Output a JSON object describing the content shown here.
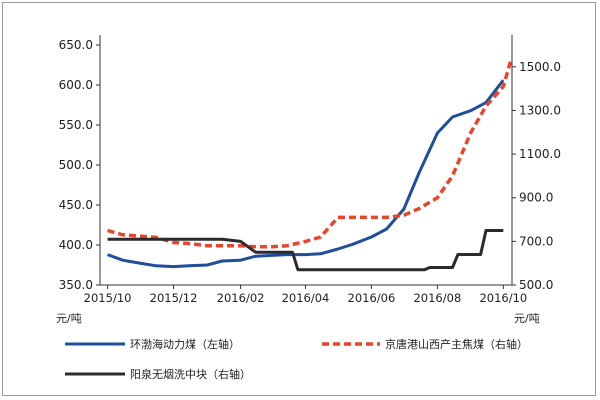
{
  "chart_data": {
    "type": "line",
    "x_ticks": [
      "2015/10",
      "2015/12",
      "2016/02",
      "2016/04",
      "2016/06",
      "2016/08",
      "2016/10"
    ],
    "y_left": {
      "unit": "元/吨",
      "range": [
        350,
        650
      ],
      "ticks": [
        "350.0",
        "400.0",
        "450.0",
        "500.0",
        "550.0",
        "600.0",
        "650.0"
      ]
    },
    "y_right": {
      "unit": "元/吨",
      "range": [
        500,
        1600
      ],
      "ticks": [
        "500.0",
        "700.0",
        "900.0",
        "1100.0",
        "1300.0",
        "1500.0"
      ]
    },
    "grid": false,
    "legend_position": "bottom",
    "colors": {
      "left_series": "#1f4e9c",
      "right_dashed": "#e8452a",
      "right_black": "#2b2b2b"
    },
    "series": [
      {
        "name": "环渤海动力煤（左轴）",
        "axis": "left",
        "style": "solid",
        "points": [
          [
            "2015-10-01",
            388
          ],
          [
            "2015-10-15",
            381
          ],
          [
            "2015-11-01",
            377
          ],
          [
            "2015-11-15",
            374
          ],
          [
            "2015-12-01",
            373
          ],
          [
            "2015-12-15",
            374
          ],
          [
            "2016-01-01",
            375
          ],
          [
            "2016-01-15",
            380
          ],
          [
            "2016-02-01",
            381
          ],
          [
            "2016-02-15",
            386
          ],
          [
            "2016-03-01",
            387
          ],
          [
            "2016-03-15",
            388
          ],
          [
            "2016-04-01",
            388
          ],
          [
            "2016-04-15",
            389
          ],
          [
            "2016-05-01",
            395
          ],
          [
            "2016-05-15",
            401
          ],
          [
            "2016-06-01",
            410
          ],
          [
            "2016-06-15",
            420
          ],
          [
            "2016-07-01",
            445
          ],
          [
            "2016-07-15",
            490
          ],
          [
            "2016-08-01",
            540
          ],
          [
            "2016-08-15",
            560
          ],
          [
            "2016-09-01",
            568
          ],
          [
            "2016-09-15",
            578
          ],
          [
            "2016-10-01",
            606
          ]
        ]
      },
      {
        "name": "京唐港山西产主焦煤（右轴）",
        "axis": "right",
        "style": "dashed",
        "points": [
          [
            "2015-10-01",
            750
          ],
          [
            "2015-10-15",
            730
          ],
          [
            "2015-11-15",
            718
          ],
          [
            "2015-12-01",
            695
          ],
          [
            "2015-12-15",
            690
          ],
          [
            "2016-01-01",
            680
          ],
          [
            "2016-02-01",
            680
          ],
          [
            "2016-02-15",
            675
          ],
          [
            "2016-03-01",
            675
          ],
          [
            "2016-03-15",
            680
          ],
          [
            "2016-04-01",
            700
          ],
          [
            "2016-04-15",
            720
          ],
          [
            "2016-05-01",
            810
          ],
          [
            "2016-06-15",
            810
          ],
          [
            "2016-07-01",
            820
          ],
          [
            "2016-07-15",
            850
          ],
          [
            "2016-08-01",
            900
          ],
          [
            "2016-08-15",
            1000
          ],
          [
            "2016-09-01",
            1200
          ],
          [
            "2016-09-15",
            1320
          ],
          [
            "2016-10-01",
            1410
          ],
          [
            "2016-10-08",
            1530
          ]
        ]
      },
      {
        "name": "阳泉无烟洗中块（右轴）",
        "axis": "right",
        "style": "solid",
        "points": [
          [
            "2015-10-01",
            710
          ],
          [
            "2016-01-15",
            710
          ],
          [
            "2016-02-01",
            700
          ],
          [
            "2016-02-15",
            650
          ],
          [
            "2016-03-20",
            650
          ],
          [
            "2016-03-25",
            570
          ],
          [
            "2016-07-20",
            570
          ],
          [
            "2016-07-25",
            580
          ],
          [
            "2016-08-15",
            580
          ],
          [
            "2016-08-20",
            640
          ],
          [
            "2016-09-10",
            640
          ],
          [
            "2016-09-15",
            750
          ],
          [
            "2016-10-01",
            750
          ]
        ]
      }
    ]
  }
}
